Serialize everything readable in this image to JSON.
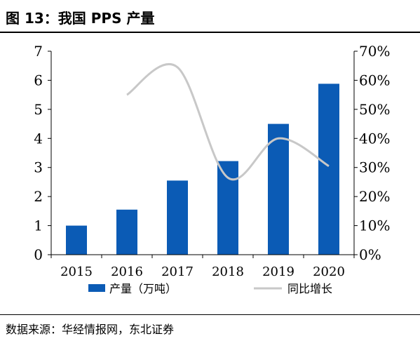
{
  "figure": {
    "title": "图 13：我国 PPS 产量",
    "source": "数据来源：华经情报网，东北证券"
  },
  "colors": {
    "bar": "#0b5bb5",
    "line": "#c8c8c8",
    "axis": "#000000"
  },
  "chart_data": {
    "type": "bar",
    "title": "",
    "xlabel": "",
    "ylabel": "",
    "categories": [
      "2015",
      "2016",
      "2017",
      "2018",
      "2019",
      "2020"
    ],
    "y_left": {
      "range": [
        0,
        7
      ],
      "ticks": [
        "0",
        "1",
        "2",
        "3",
        "4",
        "5",
        "6",
        "7"
      ]
    },
    "y_right": {
      "range": [
        0,
        0.7
      ],
      "ticks": [
        "0%",
        "10%",
        "20%",
        "30%",
        "40%",
        "50%",
        "60%",
        "70%"
      ]
    },
    "grid": false,
    "legend": "bottom",
    "series": [
      {
        "name": "产量（万吨）",
        "type": "bar",
        "axis": "left",
        "values": [
          1.0,
          1.55,
          2.55,
          3.22,
          4.5,
          5.88
        ]
      },
      {
        "name": "同比增长",
        "type": "line",
        "axis": "right",
        "smooth": true,
        "values": [
          null,
          0.55,
          0.645,
          0.265,
          0.4,
          0.305
        ]
      }
    ]
  }
}
